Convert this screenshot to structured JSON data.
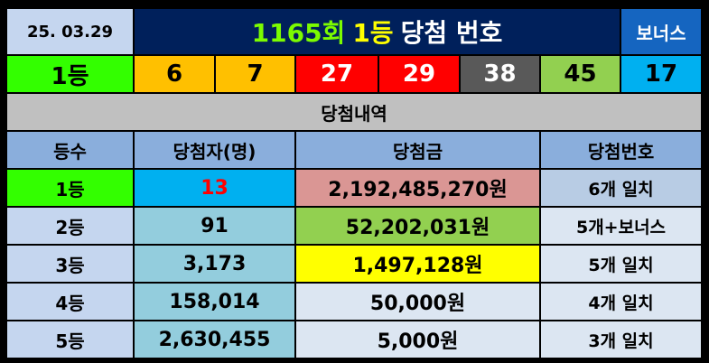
{
  "header": {
    "date": "25. 03.29",
    "title_round": "1165회",
    "title_rank": "1등",
    "title_rest": "당첨 번호",
    "bonus_label": "보너스",
    "colors": {
      "round": "#7CFC00",
      "rank": "#FFFF00",
      "rest": "#FFFFFF",
      "title_bg": "#00205B"
    }
  },
  "numbers_row": {
    "rank_label": "1등",
    "balls": [
      {
        "value": "6",
        "color": "#FFC000"
      },
      {
        "value": "7",
        "color": "#FFC000"
      },
      {
        "value": "27",
        "color": "#FF0000"
      },
      {
        "value": "29",
        "color": "#FF0000"
      },
      {
        "value": "38",
        "color": "#595959"
      },
      {
        "value": "45",
        "color": "#92D050"
      }
    ],
    "bonus": {
      "value": "17",
      "color": "#00B0F0"
    }
  },
  "section_title": "당첨내역",
  "table": {
    "headers": [
      "등수",
      "당첨자(명)",
      "당첨금",
      "당첨번호"
    ],
    "rows": [
      {
        "rank": "1등",
        "winners": "13",
        "prize": "2,192,485,270원",
        "match": "6개 일치"
      },
      {
        "rank": "2등",
        "winners": "91",
        "prize": "52,202,031원",
        "match": "5개+보너스"
      },
      {
        "rank": "3등",
        "winners": "3,173",
        "prize": "1,497,128원",
        "match": "5개 일치"
      },
      {
        "rank": "4등",
        "winners": "158,014",
        "prize": "50,000원",
        "match": "4개 일치"
      },
      {
        "rank": "5등",
        "winners": "2,630,455",
        "prize": "5,000원",
        "match": "3개 일치"
      }
    ]
  }
}
